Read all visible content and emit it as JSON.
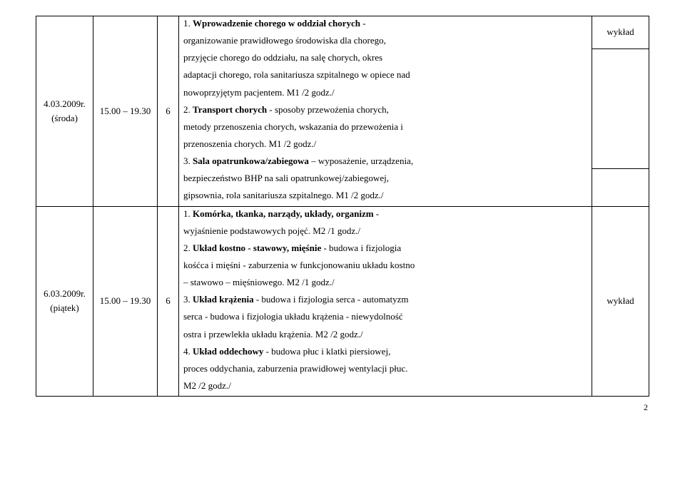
{
  "row1": {
    "date": "4.03.2009r.",
    "day": "(środa)",
    "time": "15.00 – 19.30",
    "hours": "6",
    "content_lines": [
      "1. <b>Wprowadzenie chorego w oddział chorych</b> -",
      "organizowanie prawidłowego środowiska dla chorego,",
      "przyjęcie chorego do oddziału, na salę chorych, okres",
      "adaptacji chorego, rola sanitariusza szpitalnego w opiece nad",
      "nowoprzyjętym pacjentem. M1 /2 godz./",
      "2. <b>Transport chorych</b> - sposoby przewożenia chorych,",
      "metody przenoszenia chorych, wskazania do przewożenia i",
      "przenoszenia chorych. M1 /2 godz./",
      "3. <b>Sala opatrunkowa/zabiegowa</b> – wyposażenie, urządzenia,",
      "bezpieczeństwo BHP na sali opatrunkowej/zabiegowej,",
      "gipsownia, rola sanitariusza szpitalnego. M1 /2 godz./"
    ],
    "type": "wykład"
  },
  "row2": {
    "date": "6.03.2009r.",
    "day": "(piątek)",
    "time": "15.00 – 19.30",
    "hours": "6",
    "content_lines": [
      "1. <b>Komórka, tkanka, narządy, układy, organizm</b> -",
      "wyjaśnienie podstawowych pojęć. M2 /1 godz./",
      "2. <b>Układ kostno - stawowy, mięśnie</b> -  budowa i fizjologia",
      "kośćca i mięśni - zaburzenia w funkcjonowaniu układu kostno",
      "– stawowo –  mięśniowego. M2 /1 godz./",
      "3. <b>Układ krążenia</b> - budowa i fizjologia serca - automatyzm",
      "serca - budowa i fizjologia układu krążenia - niewydolność",
      "ostra i przewlekła układu krążenia. M2 /2 godz./",
      "4. <b>Układ oddechowy</b> - budowa płuc i klatki piersiowej,",
      "proces oddychania, zaburzenia prawidłowej wentylacji płuc.",
      "M2 /2 godz./"
    ],
    "type": "wykład"
  },
  "page_number": "2"
}
